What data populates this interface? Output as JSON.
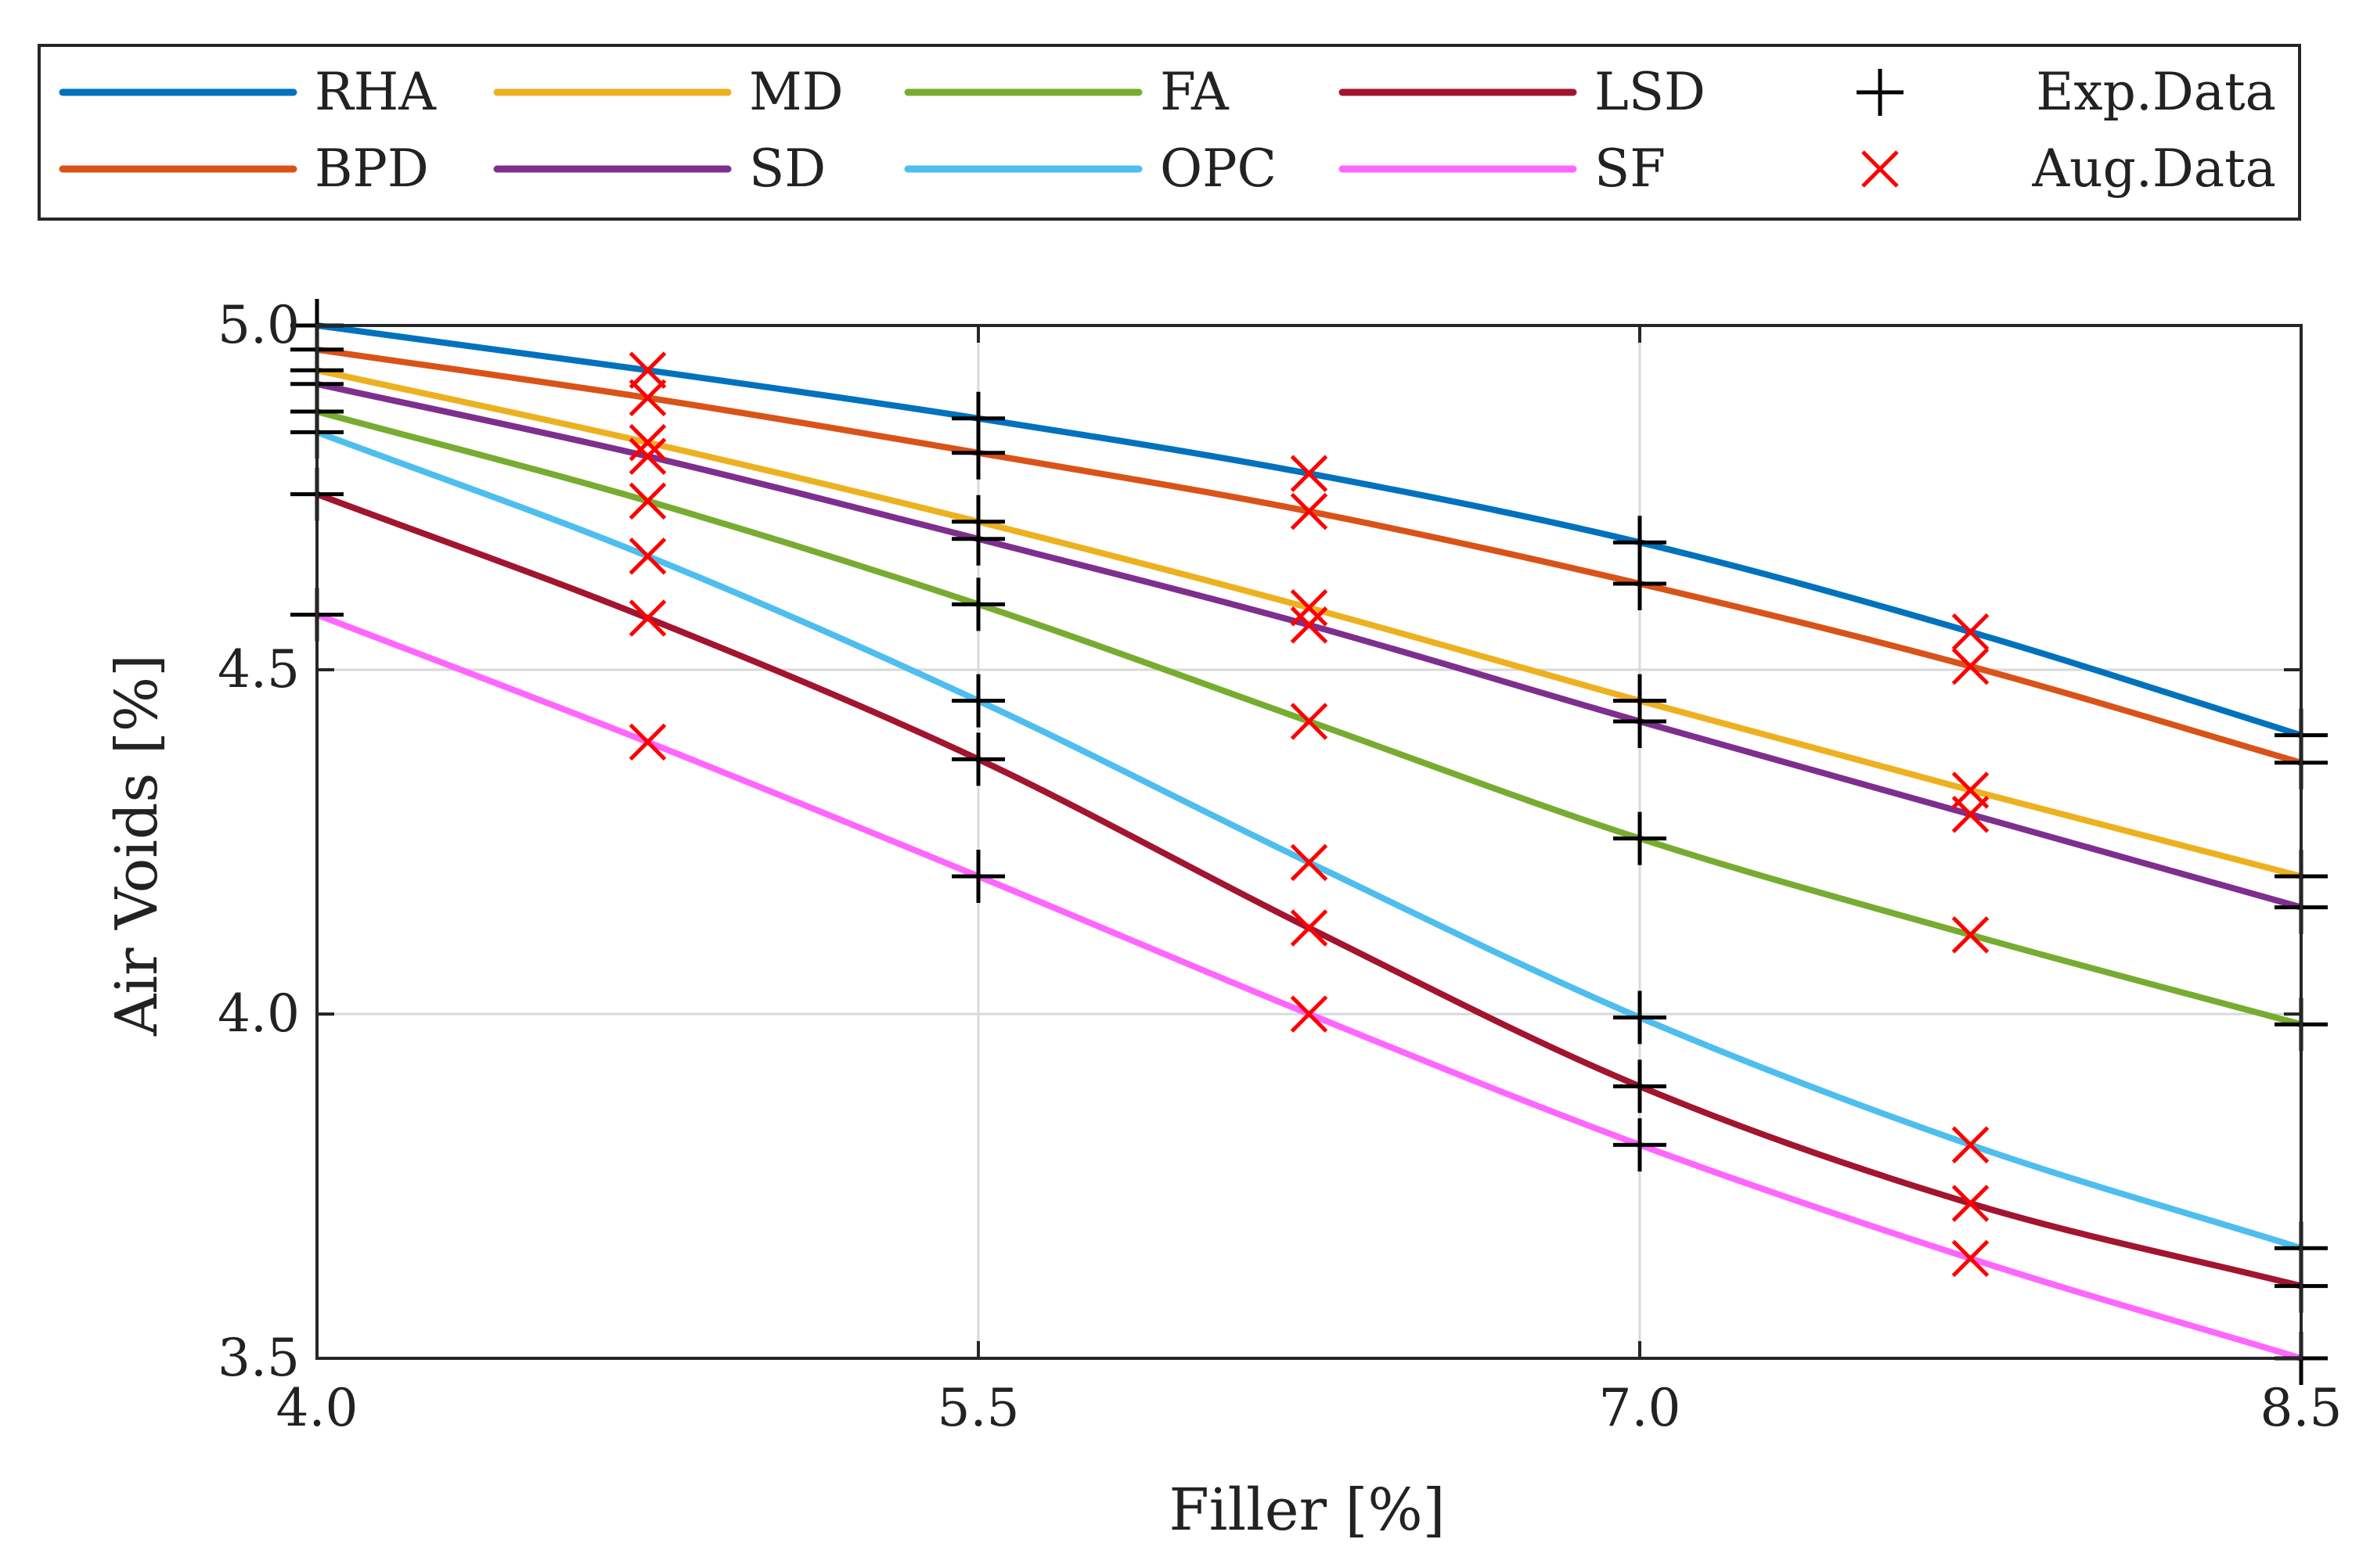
{
  "chart_data": {
    "type": "line",
    "xlabel": "Filler [%]",
    "ylabel": "Air Voids [%]",
    "xlim": [
      4.0,
      8.5
    ],
    "ylim": [
      3.5,
      5.0
    ],
    "xticks": [
      "4.0",
      "5.5",
      "7.0",
      "8.5"
    ],
    "yticks": [
      "3.5",
      "4.0",
      "4.5",
      "5.0"
    ],
    "grid": true,
    "legend_position": "top, outside plot",
    "x": [
      4.0,
      4.75,
      5.5,
      6.25,
      7.0,
      7.75,
      8.5
    ],
    "series": [
      {
        "name": "RHA",
        "color": "#0072BD",
        "values": [
          5.0,
          4.935,
          4.865,
          4.785,
          4.685,
          4.555,
          4.405
        ]
      },
      {
        "name": "BPD",
        "color": "#D95319",
        "values": [
          4.965,
          4.895,
          4.815,
          4.73,
          4.625,
          4.505,
          4.365
        ]
      },
      {
        "name": "MD",
        "color": "#EDB120",
        "values": [
          4.935,
          4.83,
          4.715,
          4.59,
          4.455,
          4.325,
          4.2
        ]
      },
      {
        "name": "SD",
        "color": "#7E2F8E",
        "values": [
          4.915,
          4.81,
          4.69,
          4.565,
          4.425,
          4.29,
          4.155
        ]
      },
      {
        "name": "FA",
        "color": "#77AC30",
        "values": [
          4.875,
          4.745,
          4.595,
          4.425,
          4.255,
          4.115,
          3.985
        ]
      },
      {
        "name": "OPC",
        "color": "#4DBEEE",
        "values": [
          4.845,
          4.665,
          4.455,
          4.22,
          3.995,
          3.81,
          3.66
        ]
      },
      {
        "name": "LSD",
        "color": "#A2142F",
        "values": [
          4.755,
          4.575,
          4.37,
          4.125,
          3.895,
          3.725,
          3.605
        ]
      },
      {
        "name": "SF",
        "color": "#FF66FF",
        "values": [
          4.58,
          4.395,
          4.2,
          4.0,
          3.81,
          3.645,
          3.5
        ]
      }
    ],
    "markers": [
      {
        "name": "Exp.Data",
        "symbol": "+",
        "color": "#000000",
        "x_values": [
          4.0,
          5.5,
          7.0,
          8.5
        ]
      },
      {
        "name": "Aug.Data",
        "symbol": "x",
        "color": "#FF0000",
        "x_values": [
          4.75,
          6.25,
          7.75
        ]
      }
    ]
  }
}
